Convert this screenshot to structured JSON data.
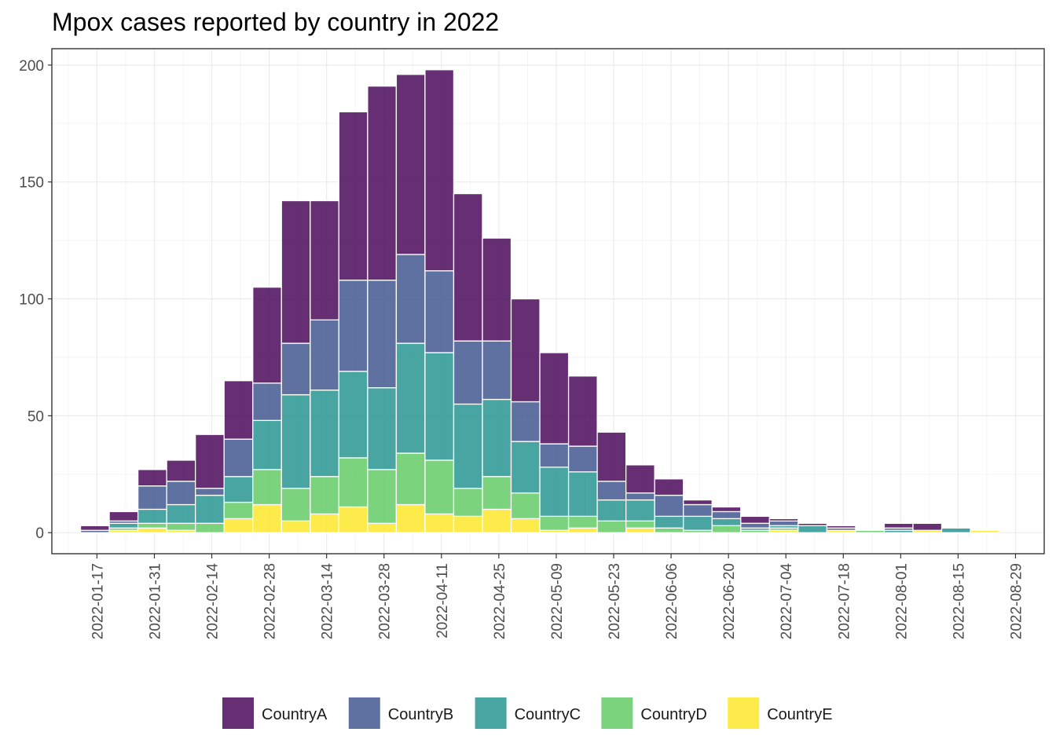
{
  "chart_data": {
    "type": "bar",
    "stacked": true,
    "title": "Mpox cases reported by country in 2022",
    "xlabel": "",
    "ylabel": "",
    "ylim": [
      -9,
      207
    ],
    "yticks": [
      0,
      50,
      100,
      150,
      200
    ],
    "x_range": [
      "2022-01-06",
      "2022-09-05"
    ],
    "bar_width_days": 7,
    "x_tick_labels": [
      "2022-01-17",
      "2022-01-31",
      "2022-02-14",
      "2022-02-28",
      "2022-03-14",
      "2022-03-28",
      "2022-04-11",
      "2022-04-25",
      "2022-05-09",
      "2022-05-23",
      "2022-06-06",
      "2022-06-20",
      "2022-07-04",
      "2022-07-18",
      "2022-08-01",
      "2022-08-15",
      "2022-08-29"
    ],
    "legend_position": "bottom",
    "grid": true,
    "weeks": [
      "2022-01-17",
      "2022-01-24",
      "2022-01-31",
      "2022-02-07",
      "2022-02-14",
      "2022-02-21",
      "2022-02-28",
      "2022-03-07",
      "2022-03-14",
      "2022-03-21",
      "2022-03-28",
      "2022-04-04",
      "2022-04-11",
      "2022-04-18",
      "2022-04-25",
      "2022-05-02",
      "2022-05-09",
      "2022-05-16",
      "2022-05-23",
      "2022-05-30",
      "2022-06-06",
      "2022-06-13",
      "2022-06-20",
      "2022-06-27",
      "2022-07-04",
      "2022-07-11",
      "2022-07-18",
      "2022-07-25",
      "2022-08-01",
      "2022-08-08",
      "2022-08-15",
      "2022-08-22"
    ],
    "series": [
      {
        "name": "CountryE",
        "color": "#FDE725",
        "values": [
          0,
          1,
          2,
          1,
          0,
          6,
          12,
          5,
          8,
          11,
          4,
          12,
          8,
          7,
          10,
          6,
          1,
          2,
          0,
          2,
          0,
          0,
          0,
          0,
          1,
          0,
          1,
          0,
          0,
          1,
          0,
          1
        ]
      },
      {
        "name": "CountryD",
        "color": "#5EC962",
        "values": [
          0,
          1,
          2,
          3,
          4,
          7,
          15,
          14,
          16,
          21,
          23,
          22,
          23,
          12,
          14,
          11,
          6,
          5,
          5,
          3,
          2,
          1,
          3,
          1,
          1,
          0,
          0,
          1,
          0,
          0,
          0,
          0
        ]
      },
      {
        "name": "CountryC",
        "color": "#21918C",
        "values": [
          0,
          2,
          6,
          8,
          12,
          11,
          21,
          40,
          37,
          37,
          35,
          47,
          46,
          36,
          33,
          22,
          21,
          19,
          9,
          9,
          5,
          6,
          3,
          1,
          1,
          3,
          0,
          0,
          1,
          0,
          2,
          0
        ]
      },
      {
        "name": "CountryB",
        "color": "#3B528B",
        "values": [
          1,
          1,
          10,
          10,
          3,
          16,
          16,
          22,
          30,
          39,
          46,
          38,
          35,
          27,
          25,
          17,
          10,
          11,
          8,
          3,
          9,
          5,
          3,
          2,
          2,
          0,
          1,
          0,
          1,
          0,
          0,
          0
        ]
      },
      {
        "name": "CountryA",
        "color": "#440154",
        "values": [
          2,
          4,
          7,
          9,
          23,
          25,
          41,
          61,
          51,
          72,
          83,
          77,
          86,
          63,
          44,
          44,
          39,
          30,
          21,
          12,
          7,
          2,
          2,
          3,
          1,
          1,
          1,
          0,
          2,
          3,
          0,
          0
        ]
      }
    ]
  },
  "legend": {
    "items": [
      {
        "label": "CountryA",
        "color": "#440154"
      },
      {
        "label": "CountryB",
        "color": "#3B528B"
      },
      {
        "label": "CountryC",
        "color": "#21918C"
      },
      {
        "label": "CountryD",
        "color": "#5EC962"
      },
      {
        "label": "CountryE",
        "color": "#FDE725"
      }
    ]
  }
}
